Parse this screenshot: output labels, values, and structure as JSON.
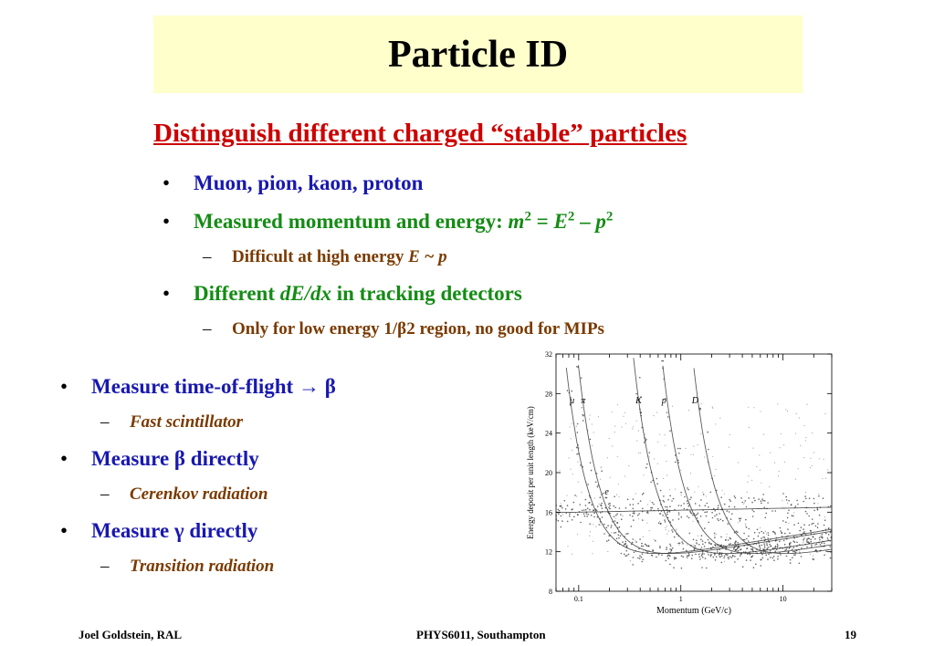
{
  "slide": {
    "title": "Particle ID",
    "subtitle": "Distinguish different charged “stable” particles",
    "bullet_char": "•",
    "dash_char": "–",
    "bullets_top": {
      "b1": "Muon, pion, kaon, proton",
      "b2_text": "Measured momentum and energy: ",
      "b2_formula": {
        "m": "m",
        "exp1": "2",
        "eq": " = ",
        "E": "E",
        "exp2": "2",
        "minus": " – ",
        "p": "p",
        "exp3": "2"
      },
      "b2_sub_text": "Difficult at high energy ",
      "b2_sub_formula": "E ~ p",
      "b3_pre": "Different ",
      "b3_italic": "dE/dx",
      "b3_post": " in tracking detectors",
      "b3_sub": "Only for low energy 1/β2 region, no good for MIPs"
    },
    "bullets_left": [
      {
        "text": "Measure time-of-flight → β",
        "sub": "Fast scintillator"
      },
      {
        "text": "Measure β directly",
        "sub": "Cerenkov radiation"
      },
      {
        "text": "Measure γ directly",
        "sub": "Transition radiation"
      }
    ],
    "footer": {
      "left": "Joel Goldstein, RAL",
      "center": "PHYS6011, Southampton",
      "right": "19"
    }
  },
  "chart_data": {
    "type": "scatter",
    "xlabel": "Momentum (GeV/c)",
    "ylabel": "Energy deposit per unit length (keV/cm)",
    "x_scale": "log",
    "xlim": [
      0.06,
      30
    ],
    "ylim": [
      8,
      32
    ],
    "x_ticks": [
      {
        "v": 0.1,
        "label": "0.1"
      },
      {
        "v": 1,
        "label": "1"
      },
      {
        "v": 10,
        "label": "10"
      }
    ],
    "y_ticks": [
      8,
      12,
      16,
      20,
      24,
      28,
      32
    ],
    "curve_labels": [
      {
        "label": "μ",
        "x": 0.082,
        "y": 27
      },
      {
        "label": "π",
        "x": 0.105,
        "y": 27
      },
      {
        "label": "K",
        "x": 0.36,
        "y": 27
      },
      {
        "label": "p",
        "x": 0.65,
        "y": 27
      },
      {
        "label": "D",
        "x": 1.28,
        "y": 27
      },
      {
        "label": "e",
        "x": 0.18,
        "y": 17.8
      }
    ],
    "series": [
      {
        "name": "μ",
        "mass": 0.106
      },
      {
        "name": "π",
        "mass": 0.14
      },
      {
        "name": "K",
        "mass": 0.494
      },
      {
        "name": "p",
        "mass": 0.938
      },
      {
        "name": "D",
        "mass": 1.876
      },
      {
        "name": "e",
        "mass": 0.000511
      }
    ],
    "grid": false,
    "colors": {
      "points": "#222222",
      "axis": "#000000"
    }
  }
}
